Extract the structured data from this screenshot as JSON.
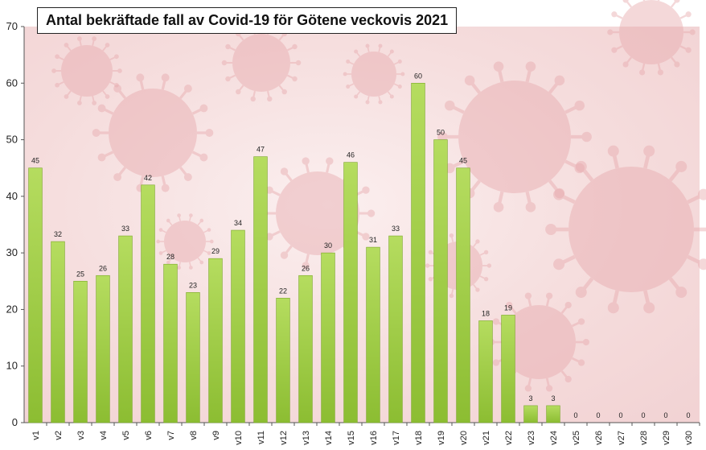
{
  "chart_data": {
    "type": "bar",
    "title": "Antal bekräftade fall av Covid-19 för Götene veckovis 2021",
    "xlabel": "",
    "ylabel": "",
    "ylim": [
      0,
      70
    ],
    "yticks": [
      0,
      10,
      20,
      30,
      40,
      50,
      60,
      70
    ],
    "grid": false,
    "legend": "none",
    "categories": [
      "v1",
      "v2",
      "v3",
      "v4",
      "v5",
      "v6",
      "v7",
      "v8",
      "v9",
      "v10",
      "v11",
      "v12",
      "v13",
      "v14",
      "v15",
      "v16",
      "v17",
      "v18",
      "v19",
      "v20",
      "v21",
      "v22",
      "v23",
      "v24",
      "v25",
      "v26",
      "v27",
      "v28",
      "v29",
      "v30"
    ],
    "values": [
      45,
      32,
      25,
      26,
      33,
      42,
      28,
      23,
      29,
      34,
      47,
      22,
      26,
      30,
      46,
      31,
      33,
      60,
      50,
      45,
      18,
      19,
      3,
      3,
      0,
      0,
      0,
      0,
      0,
      0
    ],
    "colors": {
      "bar_light": "#b5dc5f",
      "bar_dark": "#8cbd32",
      "bar_edge": "#7aa828",
      "background_tint": "#f6dede",
      "virus": "#e7a9ad"
    }
  }
}
